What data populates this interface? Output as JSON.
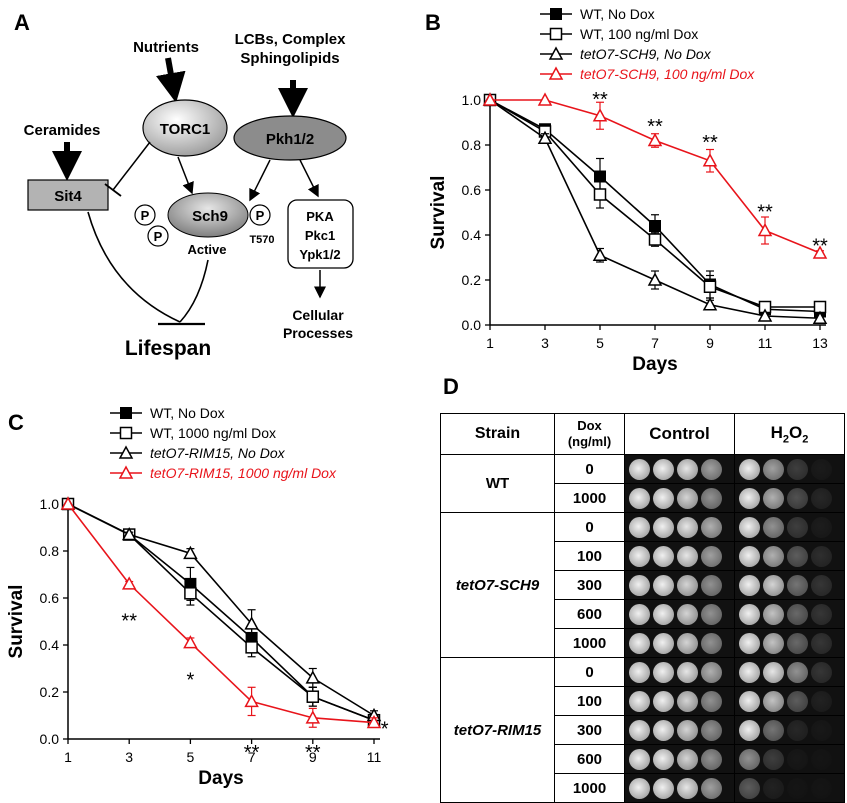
{
  "panels": {
    "A": {
      "letter": "A",
      "nutrients": "Nutrients",
      "lcb_line1": "LCBs, Complex",
      "lcb_line2": "Sphingolipids",
      "ceramides": "Ceramides",
      "torc1": "TORC1",
      "pkh": "Pkh1/2",
      "sit4": "Sit4",
      "sch9": "Sch9",
      "p": "P",
      "active": "Active",
      "t570": "T570",
      "pka": "PKA",
      "pkc1": "Pkc1",
      "ypk": "Ypk1/2",
      "lifespan": "Lifespan",
      "cellular": "Cellular",
      "processes": "Processes"
    },
    "B": {
      "letter": "B"
    },
    "C": {
      "letter": "C"
    },
    "D": {
      "letter": "D",
      "col_strain": "Strain",
      "col_dox_line1": "Dox",
      "col_dox_line2": "(ng/ml)",
      "col_control": "Control",
      "col_h2o2": "H",
      "col_h2o2_sub": "2",
      "col_h2o2_o": "O",
      "col_h2o2_sub2": "2",
      "groups": [
        {
          "strain": "WT",
          "doses": [
            "0",
            "1000"
          ]
        },
        {
          "strain": "tetO7-SCH9",
          "doses": [
            "0",
            "100",
            "300",
            "600",
            "1000"
          ]
        },
        {
          "strain": "tetO7-RIM15",
          "doses": [
            "0",
            "100",
            "300",
            "600",
            "1000"
          ]
        }
      ],
      "control_growth": [
        [
          1,
          1,
          0.95,
          0.75
        ],
        [
          1,
          1,
          0.9,
          0.7
        ],
        [
          1,
          1,
          0.95,
          0.8
        ],
        [
          1,
          1,
          0.95,
          0.75
        ],
        [
          1,
          1,
          0.9,
          0.7
        ],
        [
          1,
          1,
          0.9,
          0.7
        ],
        [
          1,
          1,
          0.9,
          0.7
        ],
        [
          1,
          1,
          0.95,
          0.8
        ],
        [
          1,
          1,
          0.9,
          0.7
        ],
        [
          1,
          1,
          0.9,
          0.7
        ],
        [
          1,
          1,
          0.9,
          0.7
        ],
        [
          1,
          1,
          0.95,
          0.75
        ]
      ],
      "h2o2_growth": [
        [
          1,
          0.75,
          0.35,
          0.08
        ],
        [
          1,
          0.8,
          0.45,
          0.2
        ],
        [
          1,
          0.7,
          0.35,
          0.1
        ],
        [
          1,
          0.8,
          0.5,
          0.25
        ],
        [
          1,
          0.9,
          0.6,
          0.3
        ],
        [
          1,
          0.85,
          0.55,
          0.3
        ],
        [
          1,
          0.85,
          0.55,
          0.3
        ],
        [
          1,
          0.95,
          0.7,
          0.3
        ],
        [
          1,
          0.85,
          0.5,
          0.15
        ],
        [
          1,
          0.6,
          0.2,
          0.05
        ],
        [
          0.7,
          0.35,
          0.05,
          0
        ],
        [
          0.5,
          0.15,
          0,
          0
        ]
      ]
    }
  },
  "chart_data": [
    {
      "panel": "B",
      "type": "line",
      "title": "",
      "xlabel": "Days",
      "ylabel": "Survival",
      "x": [
        1,
        3,
        5,
        7,
        9,
        11,
        13
      ],
      "xticks": [
        "1",
        "3",
        "5",
        "7",
        "9",
        "11",
        "13"
      ],
      "yticks": [
        "0.0",
        "0.2",
        "0.4",
        "0.6",
        "0.8",
        "1.0"
      ],
      "xlim": [
        1,
        13
      ],
      "ylim": [
        0,
        1.0
      ],
      "legend_position": "top-right",
      "series": [
        {
          "name": "WT, No Dox",
          "marker": "filled-square",
          "color": "#000000",
          "values": [
            1.0,
            0.87,
            0.66,
            0.44,
            0.18,
            0.07,
            0.06
          ],
          "errors": [
            0,
            0.01,
            0.08,
            0.05,
            0.06,
            0.02,
            0.02
          ]
        },
        {
          "name": "WT, 100 ng/ml Dox",
          "marker": "open-square",
          "color": "#000000",
          "values": [
            1.0,
            0.86,
            0.58,
            0.38,
            0.17,
            0.08,
            0.08
          ],
          "errors": [
            0,
            0.01,
            0.06,
            0.03,
            0.05,
            0.02,
            0.02
          ]
        },
        {
          "name": "tetO7-SCH9, No Dox",
          "marker": "open-triangle",
          "color": "#000000",
          "values": [
            1.0,
            0.83,
            0.31,
            0.2,
            0.09,
            0.04,
            0.03
          ],
          "errors": [
            0,
            0.02,
            0.03,
            0.04,
            0.02,
            0.01,
            0.01
          ]
        },
        {
          "name": "tetO7-SCH9, 100 ng/ml Dox",
          "marker": "open-triangle",
          "color": "#e8141b",
          "values": [
            1.0,
            1.0,
            0.93,
            0.82,
            0.73,
            0.42,
            0.32
          ],
          "errors": [
            0,
            0,
            0.06,
            0.03,
            0.05,
            0.06,
            0.01
          ]
        }
      ],
      "annotations": [
        {
          "x": 5,
          "y": 1.0,
          "text": "**"
        },
        {
          "x": 7,
          "y": 0.88,
          "text": "**"
        },
        {
          "x": 9,
          "y": 0.81,
          "text": "**"
        },
        {
          "x": 11,
          "y": 0.5,
          "text": "**"
        },
        {
          "x": 13,
          "y": 0.35,
          "text": "**"
        }
      ]
    },
    {
      "panel": "C",
      "type": "line",
      "title": "",
      "xlabel": "Days",
      "ylabel": "Survival",
      "x": [
        1,
        3,
        5,
        7,
        9,
        11
      ],
      "xticks": [
        "1",
        "3",
        "5",
        "7",
        "9",
        "11"
      ],
      "yticks": [
        "0.0",
        "0.2",
        "0.4",
        "0.6",
        "0.8",
        "1.0"
      ],
      "xlim": [
        1,
        11
      ],
      "ylim": [
        0,
        1.0
      ],
      "legend_position": "top-right",
      "series": [
        {
          "name": "WT, No Dox",
          "marker": "filled-square",
          "color": "#000000",
          "values": [
            1.0,
            0.87,
            0.66,
            0.43,
            0.18,
            0.08
          ],
          "errors": [
            0,
            0.01,
            0.07,
            0.05,
            0.04,
            0.02
          ]
        },
        {
          "name": "WT, 1000 ng/ml Dox",
          "marker": "open-square",
          "color": "#000000",
          "values": [
            1.0,
            0.87,
            0.62,
            0.39,
            0.18,
            0.08
          ],
          "errors": [
            0,
            0.01,
            0.05,
            0.04,
            0.04,
            0.02
          ]
        },
        {
          "name": "tetO7-RIM15, No Dox",
          "marker": "open-triangle",
          "color": "#000000",
          "values": [
            1.0,
            0.87,
            0.79,
            0.49,
            0.26,
            0.1
          ],
          "errors": [
            0,
            0.01,
            0.02,
            0.06,
            0.04,
            0.02
          ]
        },
        {
          "name": "tetO7-RIM15, 1000 ng/ml Dox",
          "marker": "open-triangle",
          "color": "#e8141b",
          "values": [
            1.0,
            0.66,
            0.41,
            0.16,
            0.09,
            0.07
          ],
          "errors": [
            0,
            0.01,
            0.02,
            0.06,
            0.04,
            0.02
          ]
        }
      ],
      "annotations": [
        {
          "x": 3,
          "y": 0.5,
          "text": "**"
        },
        {
          "x": 5,
          "y": 0.25,
          "text": "*"
        },
        {
          "x": 7,
          "y": -0.06,
          "text": "**"
        },
        {
          "x": 9,
          "y": -0.06,
          "text": "**"
        },
        {
          "x": 11.35,
          "y": 0.04,
          "text": "*"
        }
      ]
    }
  ]
}
